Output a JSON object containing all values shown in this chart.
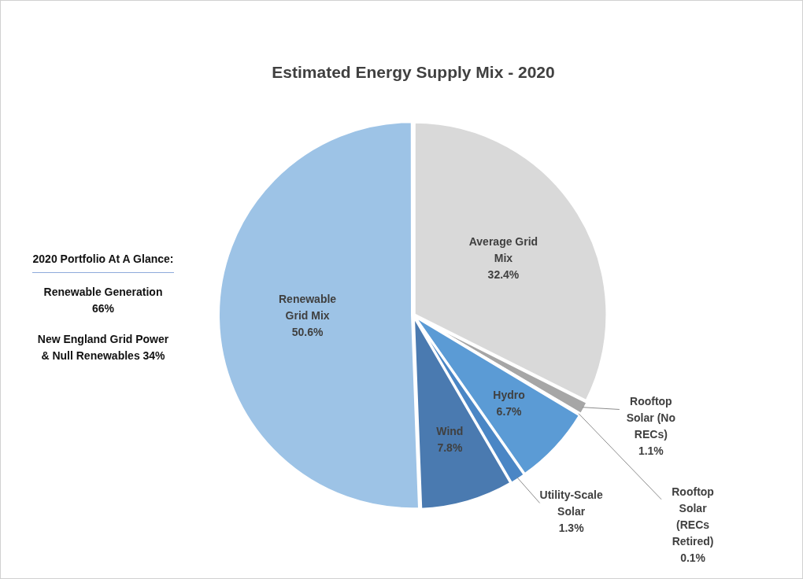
{
  "chart_data": {
    "type": "pie",
    "title": "Estimated Energy Supply Mix - 2020",
    "categories": [
      "Average Grid Mix",
      "Rooftop Solar (No RECs)",
      "Rooftop Solar (RECs Retired)",
      "Hydro",
      "Utility-Scale Solar",
      "Wind",
      "Renewable Grid Mix"
    ],
    "values": [
      32.4,
      1.1,
      0.1,
      6.7,
      1.3,
      7.8,
      50.6
    ],
    "value_labels": [
      "32.4%",
      "1.1%",
      "0.1%",
      "6.7%",
      "1.3%",
      "7.8%",
      "50.6%"
    ],
    "colors": [
      "#d9d9d9",
      "#a6a6a6",
      "#bdd7ee",
      "#5b9bd5",
      "#4a86c5",
      "#4a7ab0",
      "#9dc3e6"
    ],
    "annotations": [
      "2020 Portfolio At A Glance:",
      "Renewable Generation 66%",
      "New England Grid Power & Null Renewables 34%"
    ],
    "legend": false
  }
}
